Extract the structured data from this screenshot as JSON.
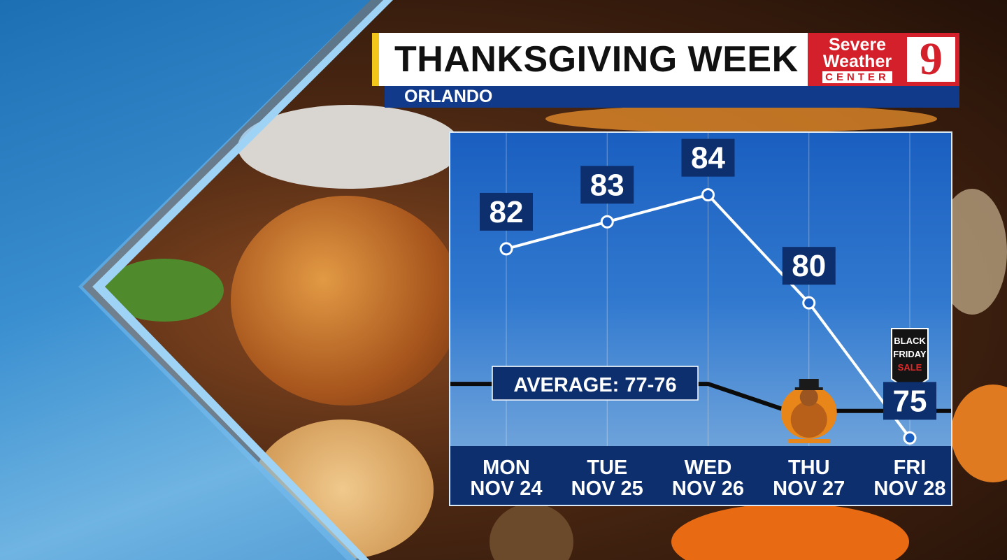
{
  "header": {
    "title": "THANKSGIVING WEEK",
    "location": "ORLANDO"
  },
  "logo": {
    "line1": "Severe",
    "line2": "Weather",
    "line3": "CENTER",
    "channel": "9"
  },
  "colors": {
    "accent_yellow": "#f3c61a",
    "brand_red": "#d4202a",
    "navy": "#123a8a",
    "label_box": "#0d2f6e"
  },
  "chart_data": {
    "type": "line",
    "categories": [
      {
        "day": "MON",
        "date": "NOV 24"
      },
      {
        "day": "TUE",
        "date": "NOV 25"
      },
      {
        "day": "WED",
        "date": "NOV 26"
      },
      {
        "day": "THU",
        "date": "NOV 27"
      },
      {
        "day": "FRI",
        "date": "NOV 28"
      }
    ],
    "series": [
      {
        "values": [
          82,
          83,
          84,
          80,
          75
        ]
      }
    ],
    "average": {
      "label": "AVERAGE: 77-76",
      "start": 77,
      "end": 76
    },
    "ylim": [
      74,
      85
    ],
    "grid": "vertical",
    "badges": [
      {
        "category_index": 4,
        "icon": "black-friday-sale-icon",
        "text": "BLACK FRIDAY SALE"
      },
      {
        "category_index": 3,
        "icon": "pilgrim-turkey-icon"
      }
    ]
  }
}
